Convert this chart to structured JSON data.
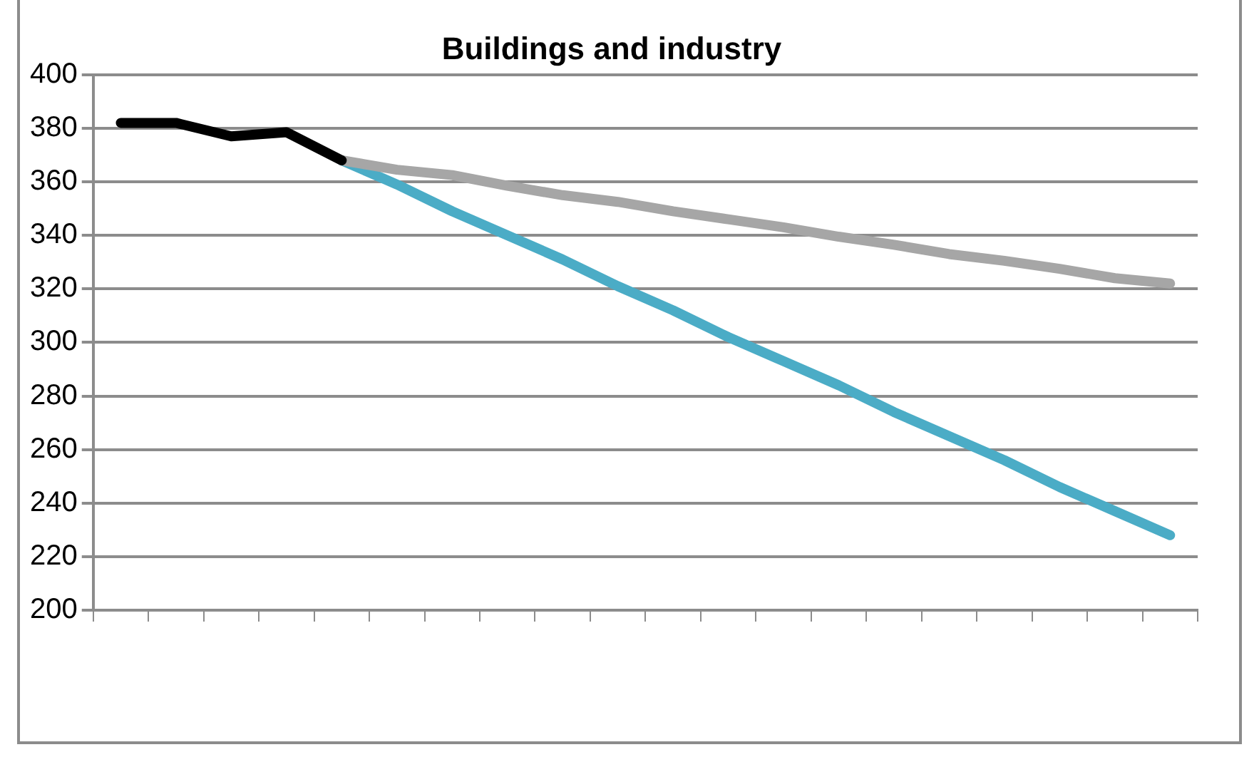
{
  "chart_data": {
    "type": "line",
    "title": "Buildings and industry",
    "categories": [
      null,
      null,
      null,
      null,
      null,
      null,
      null,
      null,
      null,
      null,
      null,
      null,
      null,
      null,
      null,
      null,
      null,
      null,
      null,
      null
    ],
    "series": [
      {
        "color": "#000000",
        "values": [
          382,
          382,
          377,
          378.5,
          368,
          null,
          null,
          null,
          null,
          null,
          null,
          null,
          null,
          null,
          null,
          null,
          null,
          null,
          null,
          null
        ]
      },
      {
        "color": "#a6a6a6",
        "values": [
          null,
          null,
          null,
          null,
          368,
          364.5,
          362.5,
          358.5,
          355,
          352.5,
          349,
          346,
          343,
          339.5,
          336.5,
          333,
          330.5,
          327.5,
          324,
          322
        ]
      },
      {
        "color": "#4bacc6",
        "values": [
          null,
          null,
          null,
          null,
          368,
          359,
          349,
          340,
          331,
          321,
          312,
          302,
          293,
          284,
          274,
          265,
          256,
          246,
          237,
          228
        ]
      }
    ],
    "ylim": [
      200,
      400
    ],
    "yticks": [
      200,
      220,
      240,
      260,
      280,
      300,
      320,
      340,
      360,
      380,
      400
    ],
    "grid": "y",
    "legend": false,
    "marker": "none",
    "line_style": "solid",
    "tick_labels": "y"
  }
}
